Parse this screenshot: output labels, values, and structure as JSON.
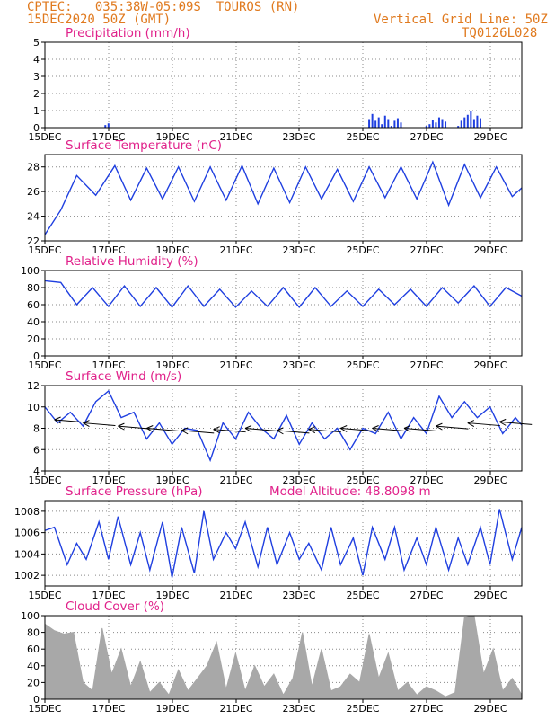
{
  "header": {
    "line1_left": "CPTEC:   035:38W-05:09S  TOUROS (RN)",
    "line2_left": "15DEC2020 50Z (GMT)",
    "line1_right": "Vertical Grid Line: 50Z",
    "line2_right": "TQ0126L028",
    "model_altitude": "Model Altitude: 48.8098  m"
  },
  "x_ticks": [
    "15DEC",
    "17DEC",
    "19DEC",
    "21DEC",
    "23DEC",
    "25DEC",
    "27DEC",
    "29DEC"
  ],
  "colors": {
    "line": "#1f3fe0",
    "bars": "#1f3fe0",
    "cloud": "#a8a8a8",
    "title": "#e0218a",
    "header": "#e07a1f"
  },
  "chart_data": [
    {
      "id": "precip",
      "type": "bar",
      "title": "Precipitation (mm/h)",
      "ylim": [
        0,
        5
      ],
      "yticks": [
        0,
        1,
        2,
        3,
        4,
        5
      ],
      "x": [
        1.9,
        2.0,
        10.2,
        10.3,
        10.4,
        10.5,
        10.6,
        10.7,
        10.8,
        10.9,
        11.0,
        11.1,
        11.2,
        12.0,
        12.1,
        12.2,
        12.3,
        12.4,
        12.5,
        12.6,
        13.0,
        13.1,
        13.2,
        13.3,
        13.4,
        13.5,
        13.6,
        13.7
      ],
      "values": [
        0.15,
        0.25,
        0.5,
        0.8,
        0.4,
        0.6,
        0.2,
        0.7,
        0.5,
        0.1,
        0.4,
        0.55,
        0.3,
        0.1,
        0.2,
        0.45,
        0.3,
        0.6,
        0.5,
        0.35,
        0.1,
        0.4,
        0.6,
        0.75,
        1.0,
        0.5,
        0.7,
        0.55
      ]
    },
    {
      "id": "temp",
      "type": "line",
      "title": "Surface Temperature (nC)",
      "ylim": [
        22,
        29
      ],
      "yticks": [
        22,
        24,
        26,
        28
      ],
      "x": [
        0,
        0.5,
        1.0,
        1.6,
        2.2,
        2.7,
        3.2,
        3.7,
        4.2,
        4.7,
        5.2,
        5.7,
        6.2,
        6.7,
        7.2,
        7.7,
        8.2,
        8.7,
        9.2,
        9.7,
        10.2,
        10.7,
        11.2,
        11.7,
        12.2,
        12.7,
        13.2,
        13.7,
        14.2,
        14.7,
        15.0
      ],
      "values": [
        22.5,
        24.5,
        27.3,
        25.7,
        28.1,
        25.3,
        27.9,
        25.4,
        28.0,
        25.2,
        28.0,
        25.3,
        28.1,
        25.0,
        27.9,
        25.1,
        28.0,
        25.4,
        27.8,
        25.2,
        28.0,
        25.5,
        28.0,
        25.4,
        28.4,
        24.9,
        28.2,
        25.5,
        28.0,
        25.6,
        26.3
      ]
    },
    {
      "id": "rh",
      "type": "line",
      "title": "Relative Humidity (%)",
      "ylim": [
        0,
        100
      ],
      "yticks": [
        0,
        20,
        40,
        60,
        80,
        100
      ],
      "x": [
        0,
        0.5,
        1.0,
        1.5,
        2.0,
        2.5,
        3.0,
        3.5,
        4.0,
        4.5,
        5.0,
        5.5,
        6.0,
        6.5,
        7.0,
        7.5,
        8.0,
        8.5,
        9.0,
        9.5,
        10.0,
        10.5,
        11.0,
        11.5,
        12.0,
        12.5,
        13.0,
        13.5,
        14.0,
        14.5,
        15.0
      ],
      "values": [
        88,
        86,
        60,
        80,
        58,
        82,
        58,
        80,
        57,
        82,
        58,
        78,
        57,
        76,
        58,
        80,
        57,
        80,
        58,
        76,
        58,
        78,
        60,
        78,
        58,
        80,
        62,
        82,
        58,
        80,
        70
      ]
    },
    {
      "id": "wind",
      "type": "line",
      "title": "Surface Wind (m/s)",
      "ylim": [
        4,
        12
      ],
      "yticks": [
        4,
        6,
        8,
        10,
        12
      ],
      "x": [
        0,
        0.4,
        0.8,
        1.2,
        1.6,
        2.0,
        2.4,
        2.8,
        3.2,
        3.6,
        4.0,
        4.4,
        4.8,
        5.2,
        5.6,
        6.0,
        6.4,
        6.8,
        7.2,
        7.6,
        8.0,
        8.4,
        8.8,
        9.2,
        9.6,
        10.0,
        10.4,
        10.8,
        11.2,
        11.6,
        12.0,
        12.4,
        12.8,
        13.2,
        13.6,
        14.0,
        14.4,
        14.8,
        15.0
      ],
      "values": [
        10,
        8.5,
        9.5,
        8.2,
        10.5,
        11.5,
        9.0,
        9.5,
        7.0,
        8.5,
        6.5,
        8.0,
        7.8,
        5.0,
        8.5,
        7.0,
        9.5,
        8.0,
        7.0,
        9.2,
        6.5,
        8.5,
        7.0,
        8.0,
        6.0,
        8.0,
        7.5,
        9.5,
        7.0,
        9.0,
        7.5,
        11.0,
        9.0,
        10.5,
        9.0,
        10.0,
        7.5,
        9.0,
        8.3
      ],
      "arrows_x": [
        0.3,
        1.2,
        2.3,
        3.2,
        4.3,
        5.3,
        6.3,
        7.3,
        8.3,
        9.3,
        10.3,
        11.3,
        12.3,
        13.3,
        14.3
      ],
      "arrows_y": [
        8.8,
        8.5,
        8.2,
        8.0,
        7.8,
        7.9,
        8.0,
        7.8,
        7.9,
        8.0,
        8.0,
        8.0,
        8.2,
        8.5,
        8.6
      ]
    },
    {
      "id": "press",
      "type": "line",
      "title": "Surface Pressure (hPa)",
      "ylim": [
        1001,
        1009
      ],
      "yticks": [
        1002,
        1004,
        1006,
        1008
      ],
      "x": [
        0,
        0.3,
        0.7,
        1.0,
        1.3,
        1.7,
        2.0,
        2.3,
        2.7,
        3.0,
        3.3,
        3.7,
        4.0,
        4.3,
        4.7,
        5.0,
        5.3,
        5.7,
        6.0,
        6.3,
        6.7,
        7.0,
        7.3,
        7.7,
        8.0,
        8.3,
        8.7,
        9.0,
        9.3,
        9.7,
        10.0,
        10.3,
        10.7,
        11.0,
        11.3,
        11.7,
        12.0,
        12.3,
        12.7,
        13.0,
        13.3,
        13.7,
        14.0,
        14.3,
        14.7,
        15.0
      ],
      "values": [
        1006.2,
        1006.5,
        1003.0,
        1005.0,
        1003.5,
        1007.0,
        1003.5,
        1007.5,
        1003.0,
        1006.0,
        1002.5,
        1007.0,
        1001.8,
        1006.5,
        1002.2,
        1008.0,
        1003.5,
        1006.0,
        1004.5,
        1007.0,
        1002.8,
        1006.5,
        1003.0,
        1006.0,
        1003.5,
        1005.0,
        1002.5,
        1006.5,
        1003.0,
        1005.5,
        1002.0,
        1006.5,
        1003.5,
        1006.5,
        1002.5,
        1005.5,
        1003.0,
        1006.5,
        1002.5,
        1005.5,
        1003.0,
        1006.5,
        1003.0,
        1008.2,
        1003.5,
        1006.5
      ]
    },
    {
      "id": "cloud",
      "type": "area",
      "title": "Cloud Cover (%)",
      "ylim": [
        0,
        100
      ],
      "yticks": [
        0,
        20,
        40,
        60,
        80,
        100
      ],
      "x": [
        0,
        0.3,
        0.6,
        0.9,
        1.2,
        1.5,
        1.8,
        2.1,
        2.4,
        2.7,
        3.0,
        3.3,
        3.6,
        3.9,
        4.2,
        4.5,
        4.8,
        5.1,
        5.4,
        5.7,
        6.0,
        6.3,
        6.6,
        6.9,
        7.2,
        7.5,
        7.8,
        8.1,
        8.4,
        8.7,
        9.0,
        9.3,
        9.6,
        9.9,
        10.2,
        10.5,
        10.8,
        11.1,
        11.4,
        11.7,
        12.0,
        12.3,
        12.6,
        12.9,
        13.2,
        13.5,
        13.8,
        14.1,
        14.4,
        14.7,
        15.0
      ],
      "values": [
        90,
        82,
        78,
        80,
        20,
        10,
        85,
        30,
        60,
        15,
        45,
        8,
        20,
        5,
        35,
        10,
        25,
        40,
        68,
        12,
        55,
        10,
        40,
        15,
        30,
        5,
        25,
        80,
        15,
        60,
        10,
        15,
        30,
        20,
        78,
        25,
        55,
        10,
        20,
        5,
        15,
        10,
        3,
        8,
        98,
        100,
        30,
        60,
        10,
        25,
        5
      ]
    }
  ]
}
